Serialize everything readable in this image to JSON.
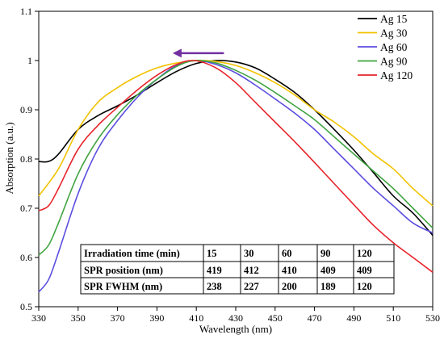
{
  "chart_data": {
    "type": "line",
    "title": "",
    "xlabel": "Wavelength (nm)",
    "ylabel": "Absorption (a.u.)",
    "xlim": [
      330,
      530
    ],
    "ylim": [
      0.5,
      1.1
    ],
    "x_ticks": [
      "330",
      "350",
      "370",
      "390",
      "410",
      "430",
      "450",
      "470",
      "490",
      "510",
      "530"
    ],
    "y_ticks": [
      "0.5",
      "0.6",
      "0.7",
      "0.8",
      "0.9",
      "1",
      "1.1"
    ],
    "grid": false,
    "legend_position": "top-right",
    "series": [
      {
        "name": "Ag 15",
        "color": "#000000",
        "x": [
          330,
          335,
          340,
          350,
          360,
          370,
          380,
          390,
          400,
          410,
          420,
          430,
          440,
          450,
          460,
          470,
          480,
          490,
          500,
          510,
          520,
          530
        ],
        "y": [
          0.795,
          0.795,
          0.81,
          0.86,
          0.888,
          0.908,
          0.93,
          0.955,
          0.978,
          0.994,
          1.0,
          0.997,
          0.985,
          0.962,
          0.935,
          0.9,
          0.86,
          0.818,
          0.772,
          0.725,
          0.69,
          0.645
        ]
      },
      {
        "name": "Ag 30",
        "color": "#f2c200",
        "x": [
          330,
          340,
          350,
          360,
          370,
          380,
          390,
          400,
          412,
          420,
          430,
          440,
          450,
          460,
          470,
          480,
          490,
          500,
          510,
          520,
          530
        ],
        "y": [
          0.725,
          0.78,
          0.86,
          0.915,
          0.945,
          0.968,
          0.985,
          0.995,
          1.0,
          0.998,
          0.99,
          0.975,
          0.955,
          0.93,
          0.9,
          0.875,
          0.845,
          0.81,
          0.78,
          0.74,
          0.705
        ]
      },
      {
        "name": "Ag 60",
        "color": "#5b4ee0",
        "x": [
          330,
          335,
          340,
          350,
          360,
          370,
          380,
          390,
          400,
          410,
          420,
          430,
          440,
          450,
          460,
          470,
          480,
          490,
          500,
          510,
          520,
          530
        ],
        "y": [
          0.53,
          0.555,
          0.61,
          0.73,
          0.82,
          0.878,
          0.925,
          0.962,
          0.99,
          1.0,
          0.992,
          0.975,
          0.95,
          0.922,
          0.893,
          0.86,
          0.82,
          0.78,
          0.74,
          0.705,
          0.67,
          0.65
        ]
      },
      {
        "name": "Ag 90",
        "color": "#3fa33f",
        "x": [
          330,
          335,
          340,
          350,
          360,
          370,
          380,
          390,
          400,
          409,
          420,
          430,
          440,
          450,
          460,
          470,
          480,
          490,
          500,
          510,
          520,
          530
        ],
        "y": [
          0.605,
          0.625,
          0.67,
          0.77,
          0.84,
          0.89,
          0.93,
          0.962,
          0.988,
          1.0,
          0.995,
          0.98,
          0.96,
          0.935,
          0.908,
          0.88,
          0.845,
          0.81,
          0.775,
          0.74,
          0.7,
          0.66
        ]
      },
      {
        "name": "Ag 120",
        "color": "#e8232a",
        "x": [
          330,
          335,
          340,
          350,
          360,
          370,
          380,
          390,
          400,
          409,
          420,
          430,
          440,
          450,
          460,
          470,
          480,
          490,
          500,
          510,
          520,
          530
        ],
        "y": [
          0.695,
          0.705,
          0.74,
          0.82,
          0.868,
          0.905,
          0.94,
          0.97,
          0.992,
          1.0,
          0.985,
          0.955,
          0.915,
          0.875,
          0.835,
          0.793,
          0.75,
          0.707,
          0.665,
          0.63,
          0.6,
          0.57
        ]
      }
    ],
    "annotations": [
      {
        "type": "arrow",
        "direction": "left",
        "color": "#7030a0",
        "x_from": 424,
        "x_to": 398,
        "y": 1.015
      }
    ],
    "table": {
      "rows": [
        [
          "Irradiation time (min)",
          "15",
          "30",
          "60",
          "90",
          "120"
        ],
        [
          "SPR position (nm)",
          "419",
          "412",
          "410",
          "409",
          "409"
        ],
        [
          "SPR FWHM (nm)",
          "238",
          "227",
          "200",
          "189",
          "120"
        ]
      ]
    }
  }
}
